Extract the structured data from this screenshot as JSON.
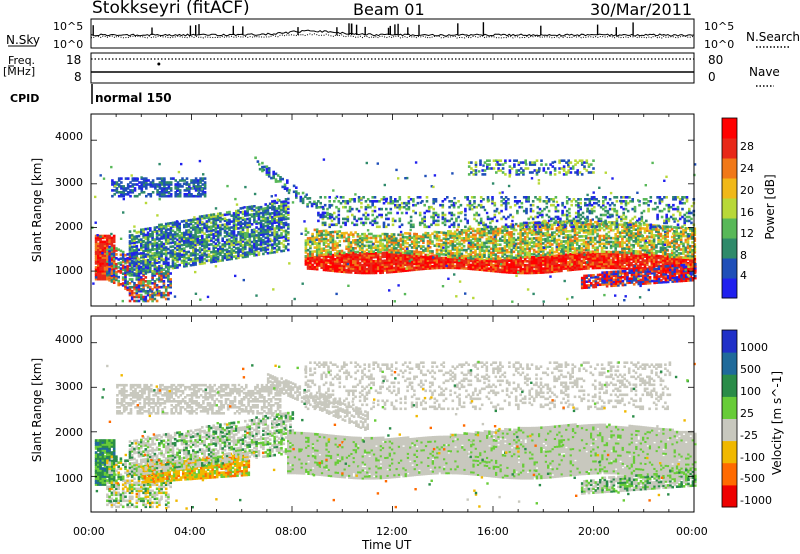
{
  "header": {
    "station": "Stokkseyri (fitACF)",
    "beam": "Beam 01",
    "date": "30/Mar/2011"
  },
  "strip": {
    "nsky_label": "N.Sky",
    "nsearch_label": "N.Search",
    "freq_label": "Freq.",
    "freq_unit": "[MHz]",
    "nave_label": "Nave",
    "cpid_label": "CPID",
    "cpid_value": "normal 150",
    "count_ticks": [
      "10^5",
      "10^0"
    ],
    "freq_ticks": [
      "18",
      "8"
    ],
    "nave_ticks": [
      "80",
      "0"
    ]
  },
  "axes": {
    "ylabel": "Slant Range [km]",
    "xlabel": "Time UT",
    "xticks": [
      "00:00",
      "04:00",
      "08:00",
      "12:00",
      "16:00",
      "20:00",
      "00:00"
    ],
    "yticks": [
      "1000",
      "2000",
      "3000",
      "4000"
    ]
  },
  "colors": {
    "power": [
      "#2020ee",
      "#1f4fb8",
      "#2f8a6a",
      "#58b858",
      "#b8d838",
      "#f0b818",
      "#f07818",
      "#e82818",
      "#ff0000"
    ],
    "velocity": [
      "#ee0000",
      "#ff6a00",
      "#f0b800",
      "#c8c8be",
      "#68cc38",
      "#2a8c48",
      "#1f6a9a",
      "#2030c8"
    ]
  },
  "chart_data": [
    {
      "type": "heatmap",
      "title": "",
      "xlabel": "",
      "ylabel": "Slant Range [km]",
      "xlim": [
        0,
        24
      ],
      "ylim": [
        200,
        4600
      ],
      "colorbar": {
        "label": "Power [dB]",
        "ticks": [
          "4",
          "8",
          "12",
          "16",
          "20",
          "24",
          "28"
        ],
        "range": [
          0,
          32
        ]
      }
    },
    {
      "type": "heatmap",
      "title": "",
      "xlabel": "Time UT",
      "ylabel": "Slant Range [km]",
      "xlim": [
        0,
        24
      ],
      "ylim": [
        200,
        4600
      ],
      "colorbar": {
        "label": "Velocity [m s^-1]",
        "ticks": [
          "1000",
          "500",
          "100",
          "25",
          "-25",
          "-100",
          "-500",
          "-1000"
        ]
      }
    }
  ]
}
